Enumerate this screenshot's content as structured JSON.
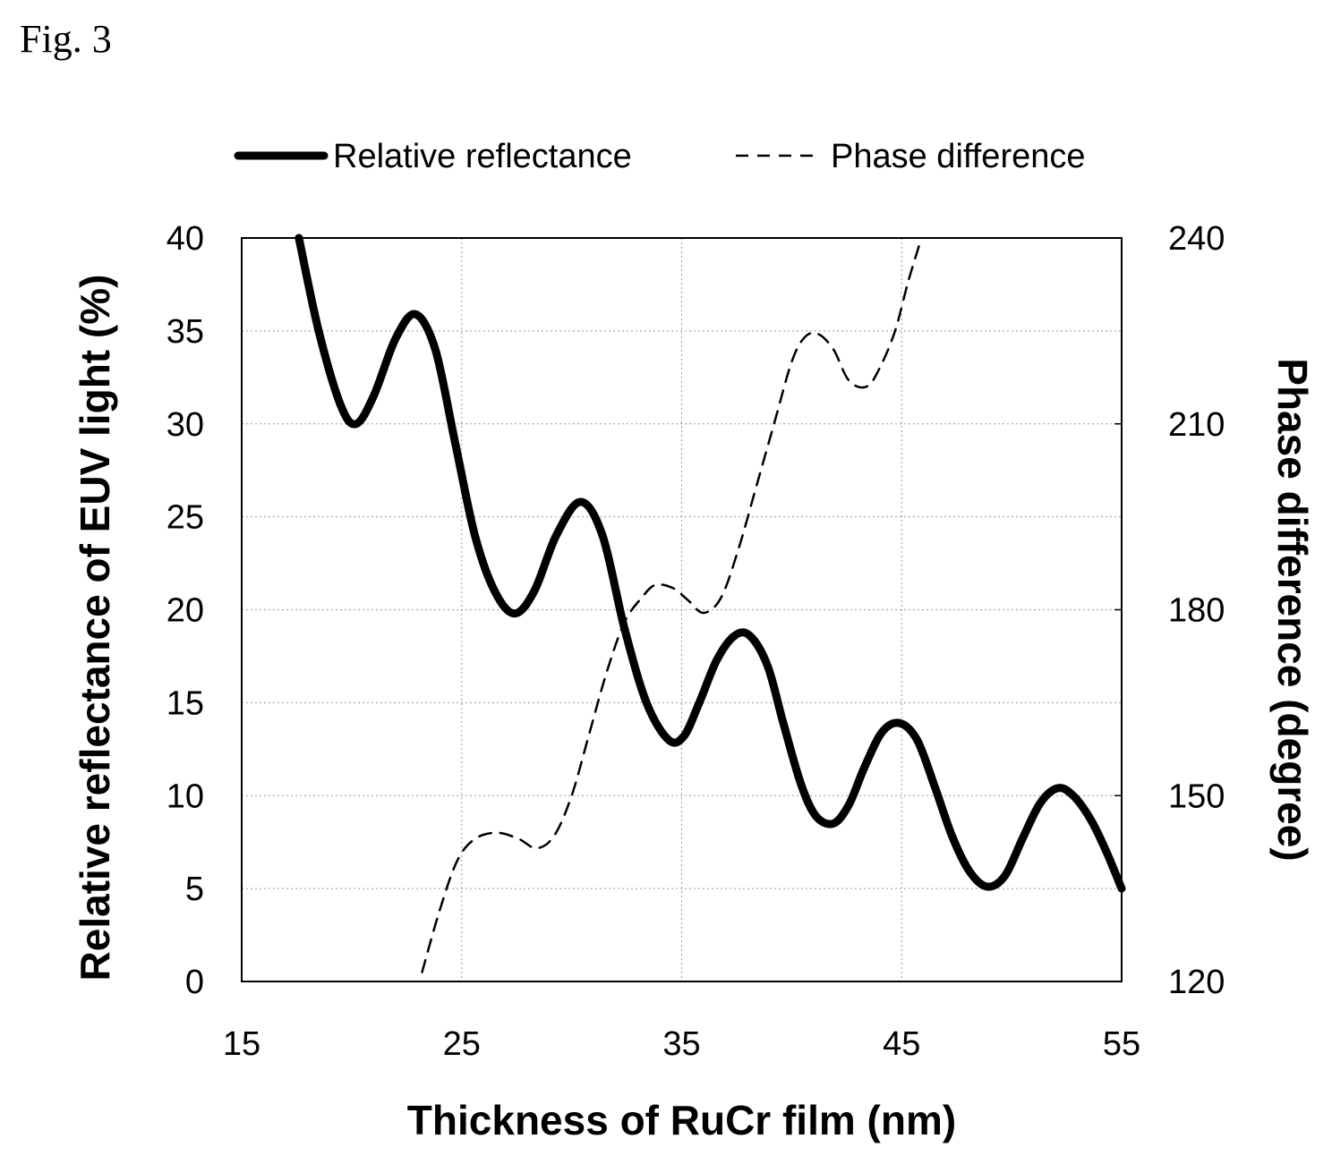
{
  "figure_label": "Fig. 3",
  "chart_data": {
    "type": "line",
    "title": "",
    "xlabel": "Thickness of RuCr film (nm)",
    "ylabel": "Relative reflectance of EUV light (%)",
    "y2label": "Phase difference (degree)",
    "xlim": [
      15,
      55
    ],
    "ylim": [
      0,
      40
    ],
    "y2lim": [
      120,
      240
    ],
    "xticks": [
      15,
      25,
      35,
      45,
      55
    ],
    "yticks": [
      0,
      5,
      10,
      15,
      20,
      25,
      30,
      35,
      40
    ],
    "y2ticks": [
      120,
      150,
      180,
      210,
      240
    ],
    "grid": "dotted",
    "legend_position": "top",
    "series": [
      {
        "name": "Relative reflectance",
        "axis": "left",
        "style": "solid",
        "color": "#000000",
        "x": [
          17.6,
          18.5,
          19.5,
          20.2,
          21.0,
          22.0,
          22.9,
          23.8,
          24.7,
          25.6,
          26.5,
          27.4,
          28.3,
          29.3,
          30.4,
          31.4,
          32.4,
          33.4,
          34.4,
          35.1,
          35.8,
          36.6,
          37.4,
          38.1,
          38.9,
          39.6,
          40.4,
          41.1,
          41.9,
          42.6,
          43.3,
          44.1,
          44.9,
          45.7,
          46.5,
          47.3,
          48.1,
          48.9,
          49.7,
          50.5,
          51.3,
          52.1,
          52.8,
          53.6,
          54.3,
          55.0
        ],
        "y": [
          40.0,
          35.0,
          31.0,
          30.0,
          31.5,
          34.6,
          35.9,
          34.0,
          29.0,
          24.0,
          21.0,
          19.8,
          21.0,
          24.0,
          25.8,
          24.0,
          19.0,
          15.0,
          13.0,
          13.2,
          15.0,
          17.3,
          18.6,
          18.6,
          17.0,
          14.0,
          10.7,
          8.9,
          8.5,
          9.5,
          11.5,
          13.4,
          13.9,
          13.0,
          10.5,
          7.8,
          5.9,
          5.1,
          5.7,
          7.7,
          9.6,
          10.4,
          10.0,
          8.7,
          7.0,
          5.0
        ]
      },
      {
        "name": "Phase difference",
        "axis": "right",
        "style": "dashed",
        "color": "#000000",
        "x": [
          23.2,
          24.0,
          24.8,
          25.6,
          26.6,
          27.6,
          28.4,
          29.2,
          30.0,
          30.8,
          31.6,
          32.4,
          33.2,
          33.8,
          34.6,
          35.3,
          36.0,
          36.8,
          37.6,
          38.4,
          39.2,
          40.0,
          40.6,
          41.2,
          41.9,
          42.6,
          43.4,
          44.0,
          44.7,
          45.3,
          45.9
        ],
        "y": [
          121.5,
          131.5,
          139.5,
          143.0,
          144.0,
          143.0,
          141.5,
          143.5,
          150.0,
          160.0,
          170.0,
          178.0,
          182.0,
          184.0,
          183.5,
          181.5,
          179.5,
          182.0,
          190.0,
          200.0,
          210.0,
          220.0,
          224.0,
          224.5,
          222.0,
          217.0,
          216.0,
          219.0,
          225.0,
          233.0,
          240.0
        ]
      }
    ]
  }
}
